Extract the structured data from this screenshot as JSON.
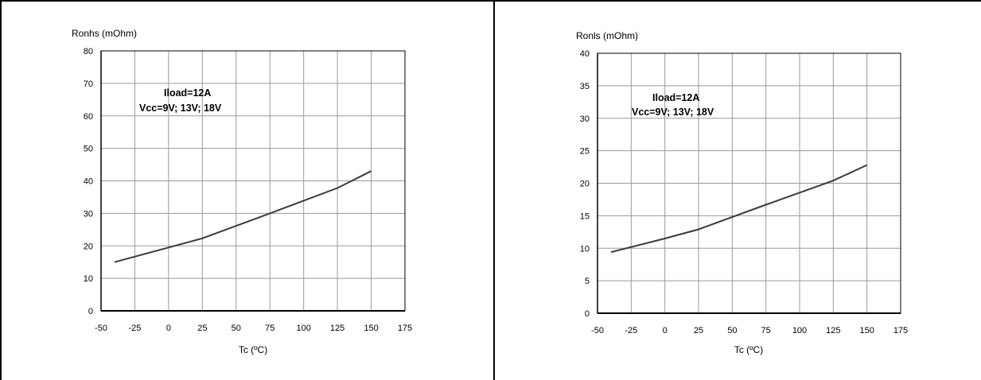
{
  "chart_data": [
    {
      "type": "line",
      "ylabel": "Ronhs (mOhm)",
      "xlabel": "Tc (ºC)",
      "annotation": [
        "Iload=12A",
        "Vcc=9V; 13V; 18V"
      ],
      "xlim": [
        -50,
        175
      ],
      "ylim": [
        0,
        80
      ],
      "xticks": [
        -50,
        -25,
        0,
        25,
        50,
        75,
        100,
        125,
        150,
        175
      ],
      "yticks": [
        0,
        10,
        20,
        30,
        40,
        50,
        60,
        70,
        80
      ],
      "grid": true,
      "series": [
        {
          "x": [
            -40,
            0,
            25,
            75,
            125,
            150
          ],
          "y": [
            15,
            19.5,
            22.3,
            30,
            37.8,
            43
          ]
        }
      ],
      "line_color": "#3a3a3a"
    },
    {
      "type": "line",
      "ylabel": "Ronls (mOhm)",
      "xlabel": "Tc (ºC)",
      "annotation": [
        "Iload=12A",
        "Vcc=9V; 13V; 18V"
      ],
      "xlim": [
        -50,
        175
      ],
      "ylim": [
        0,
        40
      ],
      "xticks": [
        -50,
        -25,
        0,
        25,
        50,
        75,
        100,
        125,
        150,
        175
      ],
      "yticks": [
        0,
        5,
        10,
        15,
        20,
        25,
        30,
        35,
        40
      ],
      "grid": true,
      "series": [
        {
          "x": [
            -40,
            0,
            25,
            75,
            125,
            150
          ],
          "y": [
            9.4,
            11.5,
            12.9,
            16.7,
            20.4,
            22.8
          ]
        }
      ],
      "line_color": "#3a3a3a"
    }
  ]
}
